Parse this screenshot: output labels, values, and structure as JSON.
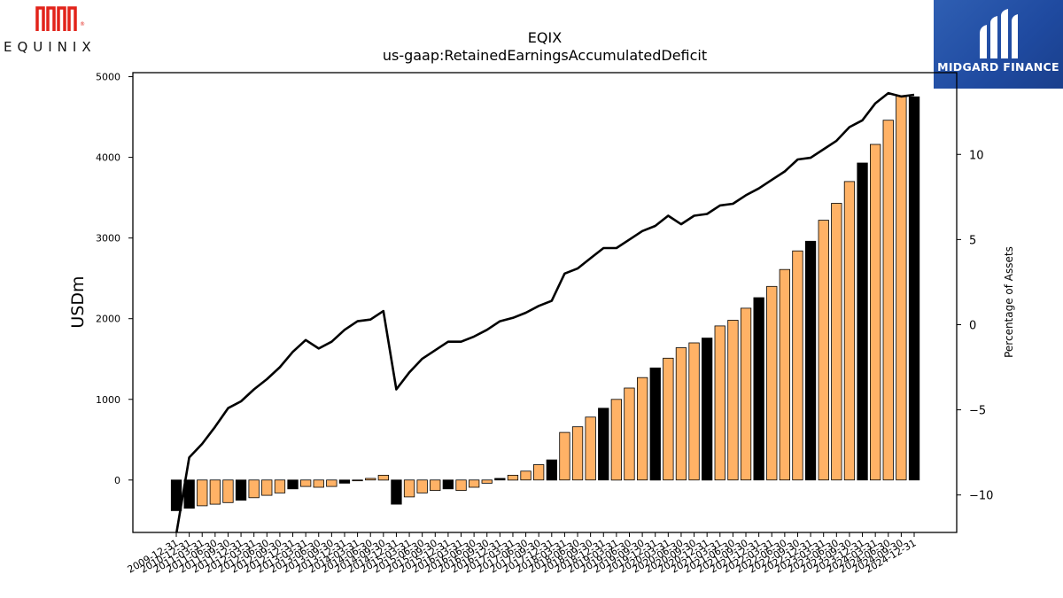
{
  "header": {
    "company_logo_text": "EQUINIX",
    "sponsor_logo_text": "MIDGARD FINANCE"
  },
  "chart_data": {
    "type": "bar",
    "title": "EQIX",
    "subtitle": "us-gaap:RetainedEarningsAccumulatedDeficit",
    "ylabel": "USDm",
    "y2label": "Percentage of Assets",
    "ylim": [
      -650,
      5050
    ],
    "y2lim": [
      -12.2,
      14.8
    ],
    "yticks": [
      0,
      1000,
      2000,
      3000,
      4000,
      5000
    ],
    "y2ticks": [
      -10,
      -5,
      0,
      5,
      10
    ],
    "colors": {
      "bar": "#ffb266",
      "bar_highlight": "#000000",
      "line": "#000000"
    },
    "categories": [
      "2009-12-31",
      "2010-12-31",
      "2011-03-31",
      "2011-06-30",
      "2011-09-30",
      "2011-12-31",
      "2012-03-31",
      "2012-06-30",
      "2012-09-30",
      "2012-12-31",
      "2013-03-31",
      "2013-06-30",
      "2013-09-30",
      "2013-12-31",
      "2014-03-31",
      "2014-06-30",
      "2014-09-30",
      "2014-12-31",
      "2015-03-31",
      "2015-06-30",
      "2015-09-30",
      "2015-12-31",
      "2016-03-31",
      "2016-06-30",
      "2016-09-30",
      "2016-12-31",
      "2017-03-31",
      "2017-06-30",
      "2017-09-30",
      "2017-12-31",
      "2018-03-31",
      "2018-06-30",
      "2018-09-30",
      "2018-12-31",
      "2019-03-31",
      "2019-06-30",
      "2019-09-30",
      "2019-12-31",
      "2020-03-31",
      "2020-06-30",
      "2020-09-30",
      "2020-12-31",
      "2021-03-31",
      "2021-06-30",
      "2021-09-30",
      "2021-12-31",
      "2022-03-31",
      "2022-06-30",
      "2022-09-30",
      "2022-12-31",
      "2023-03-31",
      "2023-06-30",
      "2023-09-30",
      "2023-12-31",
      "2024-03-31",
      "2024-06-30",
      "2024-09-30",
      "2024-12-31"
    ],
    "series": [
      {
        "type": "bar",
        "values": [
          -380,
          -350,
          -320,
          -300,
          -280,
          -250,
          -220,
          -190,
          -160,
          -110,
          -80,
          -90,
          -80,
          -40,
          -10,
          20,
          60,
          -300,
          -210,
          -160,
          -130,
          -110,
          -130,
          -90,
          -40,
          20,
          60,
          110,
          190,
          250,
          590,
          660,
          780,
          890,
          1000,
          1140,
          1270,
          1390,
          1510,
          1640,
          1700,
          1760,
          1910,
          1980,
          2130,
          2260,
          2400,
          2610,
          2840,
          2960,
          3220,
          3430,
          3700,
          3930,
          4160,
          4460,
          4760,
          4750
        ],
        "highlight": [
          true,
          true,
          false,
          false,
          false,
          true,
          false,
          false,
          false,
          true,
          false,
          false,
          false,
          true,
          false,
          false,
          false,
          true,
          false,
          false,
          false,
          true,
          false,
          false,
          false,
          true,
          false,
          false,
          false,
          true,
          false,
          false,
          false,
          true,
          false,
          false,
          false,
          true,
          false,
          false,
          false,
          true,
          false,
          false,
          false,
          true,
          false,
          false,
          false,
          true,
          false,
          false,
          false,
          true,
          false,
          false,
          false,
          true
        ]
      },
      {
        "type": "line",
        "axis": "right",
        "values": [
          -12.3,
          -7.8,
          -7.0,
          -6.0,
          -4.9,
          -4.5,
          -3.8,
          -3.2,
          -2.5,
          -1.6,
          -0.9,
          -1.4,
          -1.0,
          -0.3,
          0.2,
          0.3,
          0.8,
          -3.8,
          -2.8,
          -2.0,
          -1.5,
          -1.0,
          -1.0,
          -0.7,
          -0.3,
          0.2,
          0.4,
          0.7,
          1.1,
          1.4,
          3.0,
          3.3,
          3.9,
          4.5,
          4.5,
          5.0,
          5.5,
          5.8,
          6.4,
          5.9,
          6.4,
          6.5,
          7.0,
          7.1,
          7.6,
          8.0,
          8.5,
          9.0,
          9.7,
          9.8,
          10.3,
          10.8,
          11.6,
          12.0,
          13.0,
          13.6,
          13.4,
          13.5
        ]
      }
    ]
  }
}
